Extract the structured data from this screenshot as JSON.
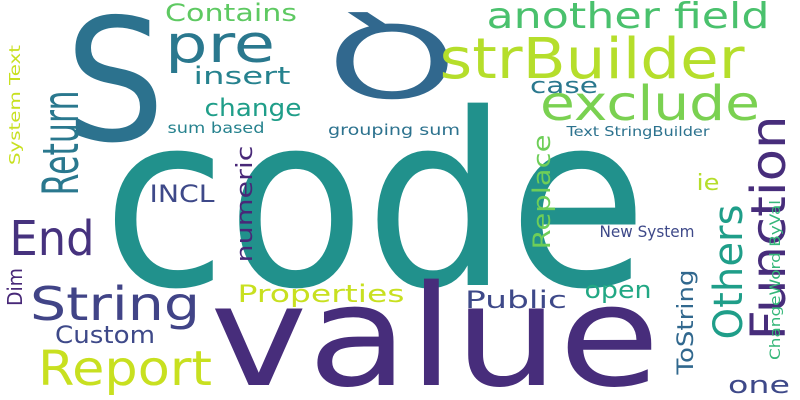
{
  "words": [
    {
      "text": "code",
      "color": "#21918c"
    },
    {
      "text": "value",
      "color": "#472d7b"
    },
    {
      "text": "S",
      "color": "#2c728e"
    },
    {
      "text": "Q",
      "color": "#31688e"
    },
    {
      "text": "pre",
      "color": "#2a788e"
    },
    {
      "text": "strBuilder",
      "color": "#b5de2b"
    },
    {
      "text": "another field",
      "color": "#4ac16d"
    },
    {
      "text": "Contains",
      "color": "#5ec962"
    },
    {
      "text": "insert",
      "color": "#26828e"
    },
    {
      "text": "exclude",
      "color": "#7ad151"
    },
    {
      "text": "case",
      "color": "#2a788e"
    },
    {
      "text": "change",
      "color": "#1f9e89"
    },
    {
      "text": "Return",
      "color": "#2a788e"
    },
    {
      "text": "System Text",
      "color": "#c8e020"
    },
    {
      "text": "sum based",
      "color": "#26828e"
    },
    {
      "text": "grouping sum",
      "color": "#2c728e"
    },
    {
      "text": "Text StringBuilder",
      "color": "#2c728e"
    },
    {
      "text": "Function",
      "color": "#472d7b"
    },
    {
      "text": "ie",
      "color": "#b5de2b"
    },
    {
      "text": "INCL",
      "color": "#3e4989"
    },
    {
      "text": "numeric",
      "color": "#482878"
    },
    {
      "text": "Replace",
      "color": "#6ece58"
    },
    {
      "text": "End",
      "color": "#46327e"
    },
    {
      "text": "Others",
      "color": "#1f9e89"
    },
    {
      "text": "ChangeWord ByVal",
      "color": "#35b779"
    },
    {
      "text": "New System",
      "color": "#3e4989"
    },
    {
      "text": "Dim",
      "color": "#482878"
    },
    {
      "text": "String",
      "color": "#414487"
    },
    {
      "text": "Properties",
      "color": "#c8e020"
    },
    {
      "text": "Public",
      "color": "#3e4989"
    },
    {
      "text": "open",
      "color": "#22a884"
    },
    {
      "text": "Custom",
      "color": "#3e4989"
    },
    {
      "text": "Report",
      "color": "#c8e020"
    },
    {
      "text": "ToString",
      "color": "#31688e"
    },
    {
      "text": "one",
      "color": "#3e4989"
    }
  ]
}
